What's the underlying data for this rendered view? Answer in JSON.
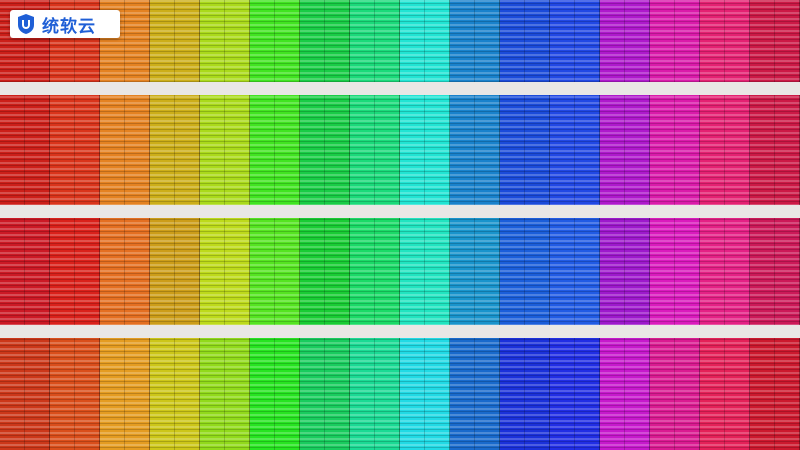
{
  "logo": {
    "text": "统软云"
  }
}
